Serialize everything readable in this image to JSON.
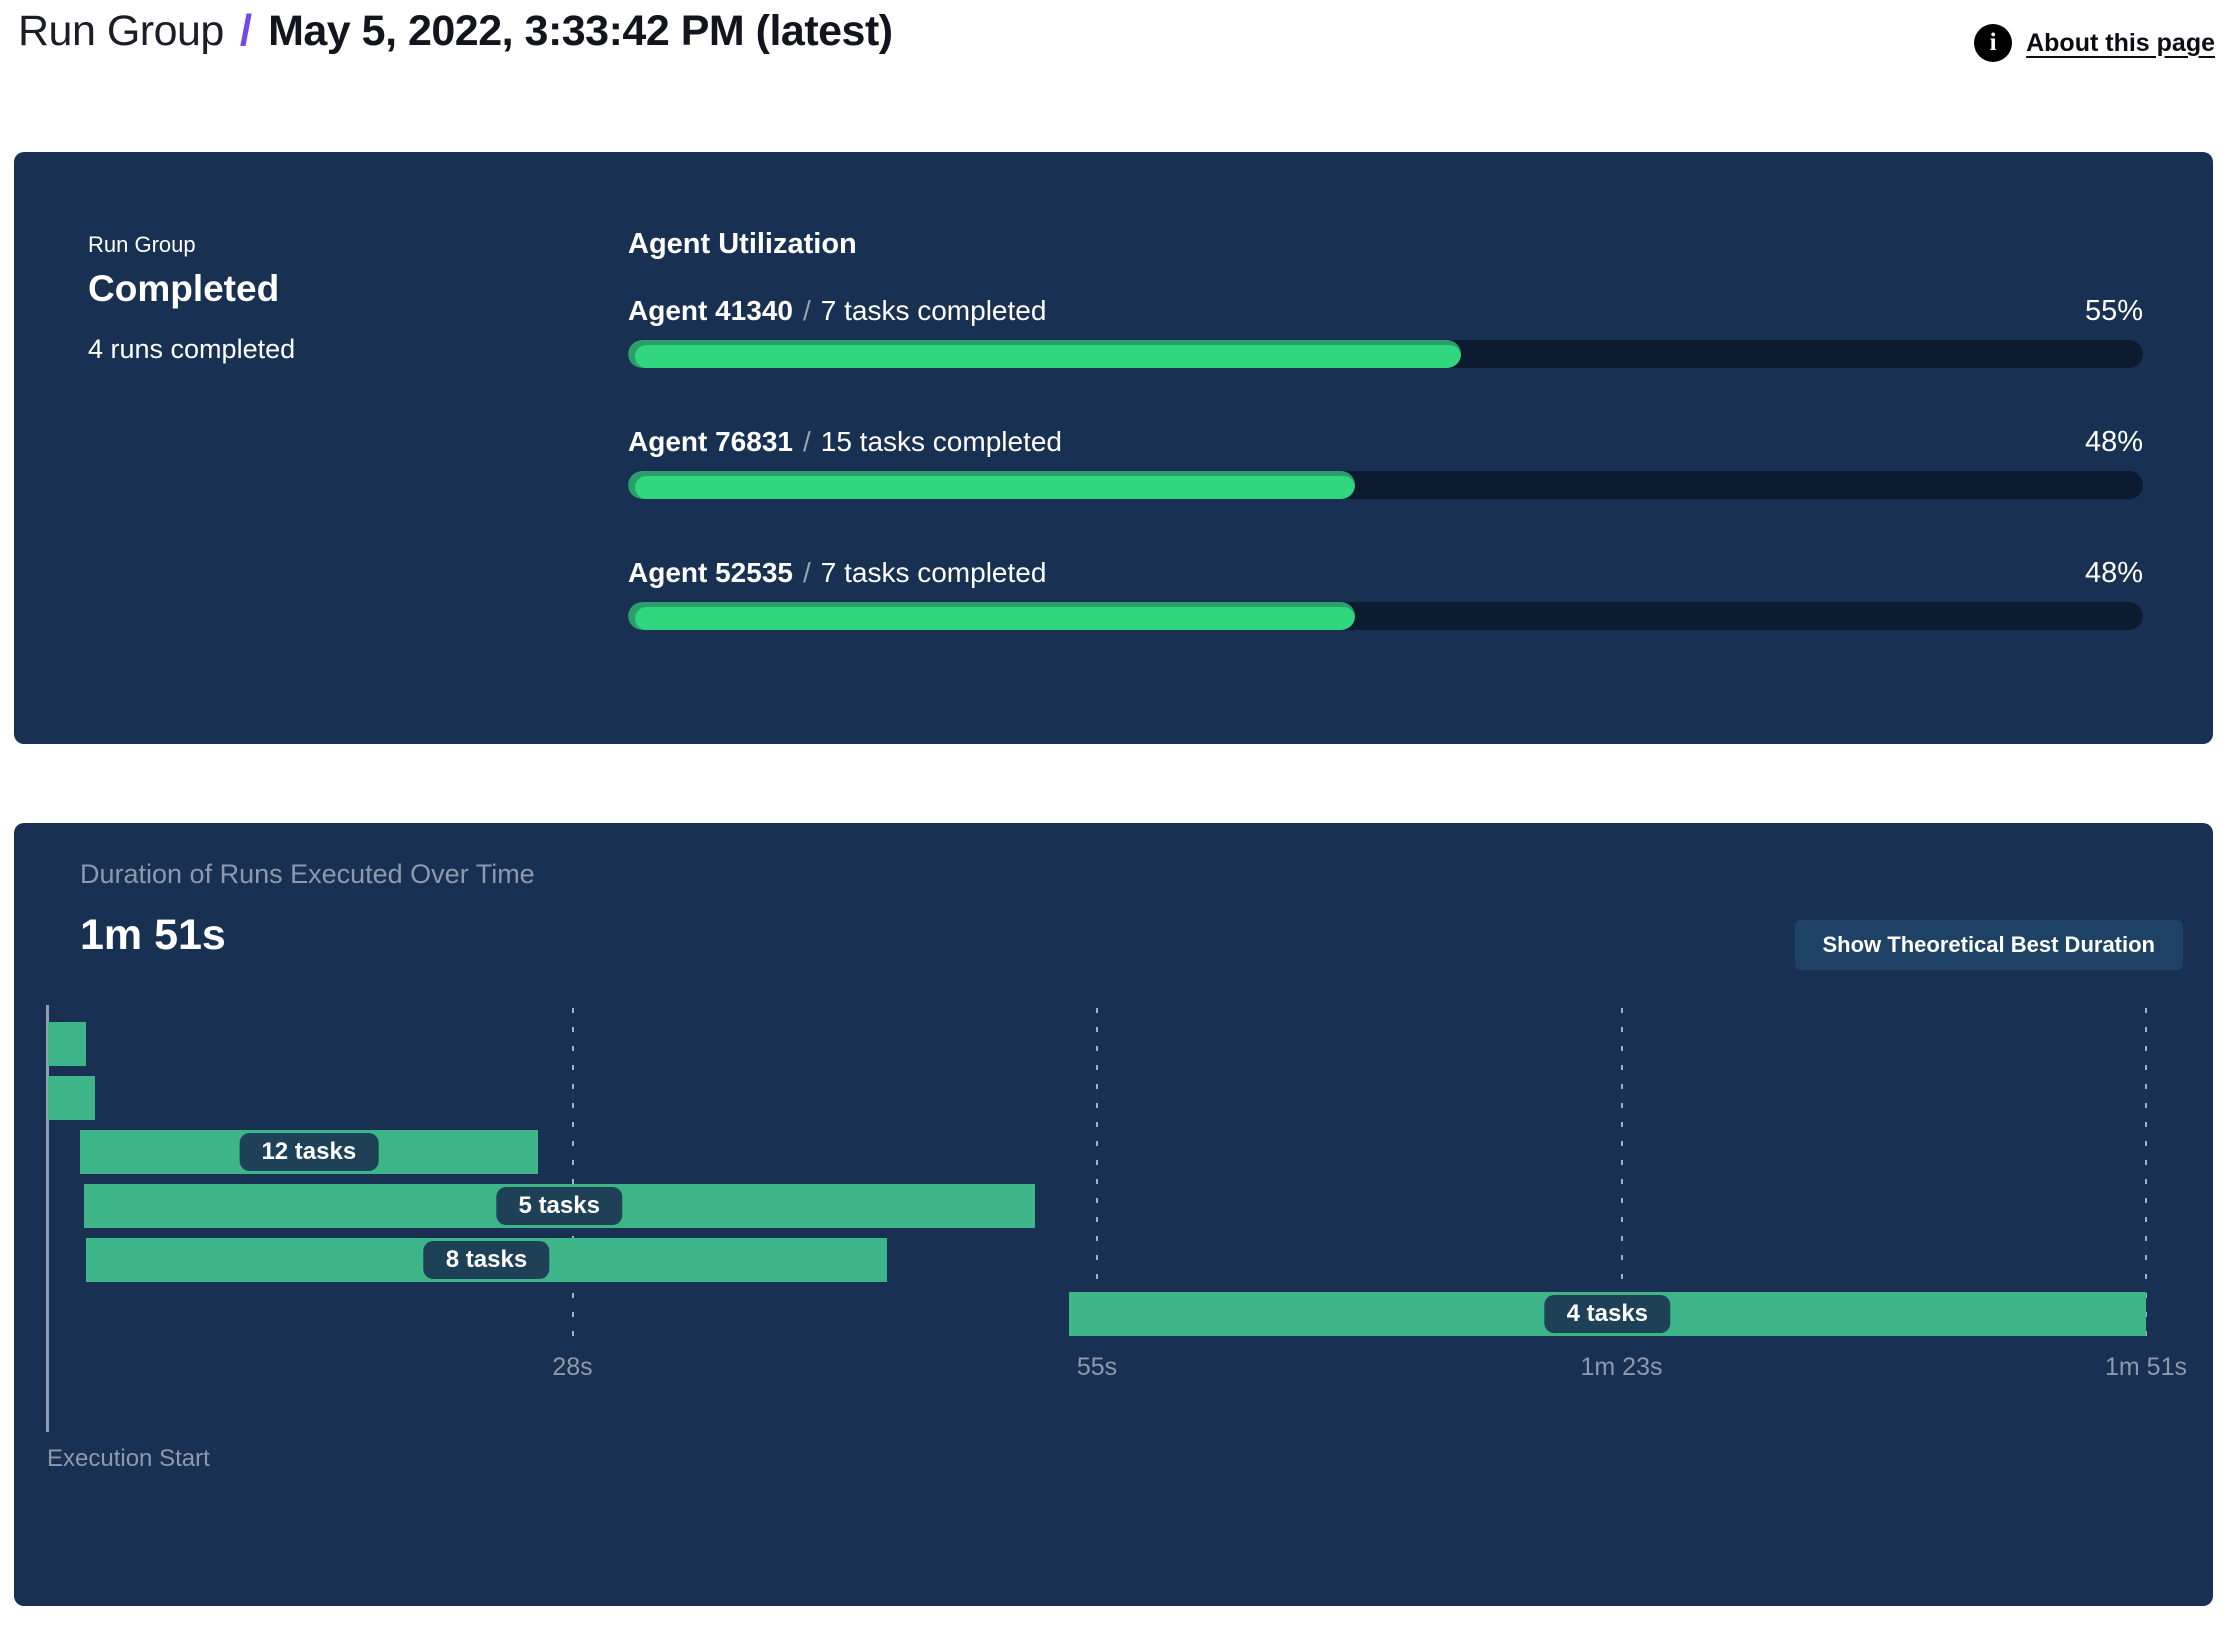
{
  "header": {
    "breadcrumb": "Run Group",
    "separator": "/",
    "current": "May 5, 2022, 3:33:42 PM (latest)",
    "about_label": "About this page",
    "info_icon_glyph": "i"
  },
  "summary": {
    "kicker": "Run Group",
    "status": "Completed",
    "detail": "4 runs completed"
  },
  "utilization": {
    "heading": "Agent Utilization",
    "separator": "/",
    "agents": [
      {
        "name": "Agent 41340",
        "detail": "7 tasks completed",
        "percent": 55,
        "percent_label": "55%"
      },
      {
        "name": "Agent 76831",
        "detail": "15 tasks completed",
        "percent": 48,
        "percent_label": "48%"
      },
      {
        "name": "Agent 52535",
        "detail": "7 tasks completed",
        "percent": 48,
        "percent_label": "48%"
      }
    ]
  },
  "duration_panel": {
    "title": "Duration of Runs Executed Over Time",
    "total_label": "1m 51s",
    "button_label": "Show Theoretical Best Duration",
    "axis_label": "Execution Start"
  },
  "colors": {
    "panel_bg": "#183051",
    "accent_purple": "#7448ec",
    "progress_fill": "#30d77f",
    "progress_fill_rim": "#2b9e6c",
    "progress_track": "#0d1b30",
    "gantt_bar": "#3eb489",
    "pill_bg": "#1e4158",
    "button_bg": "#1e4266",
    "muted_text": "#8e99ab"
  },
  "chart_data": [
    {
      "type": "bar",
      "orientation": "horizontal",
      "title": "Agent Utilization",
      "categories": [
        "Agent 41340",
        "Agent 76831",
        "Agent 52535"
      ],
      "values": [
        55,
        48,
        48
      ],
      "unit": "%",
      "annotations": [
        "7 tasks completed",
        "15 tasks completed",
        "7 tasks completed"
      ],
      "xlim": [
        0,
        100
      ],
      "grid": false,
      "legend": "none"
    },
    {
      "type": "bar",
      "subtype": "gantt",
      "title": "Duration of Runs Executed Over Time",
      "summary_value": "1m 51s",
      "xlabel": "Execution Start",
      "xlim_seconds": [
        0,
        111
      ],
      "ticks": [
        {
          "label": "28s",
          "seconds": 27.75
        },
        {
          "label": "55s",
          "seconds": 55.5
        },
        {
          "label": "1m 23s",
          "seconds": 83.25
        },
        {
          "label": "1m 51s",
          "seconds": 111
        }
      ],
      "runs": [
        {
          "row": 0,
          "start_s": 0,
          "end_s": 2.0,
          "label": ""
        },
        {
          "row": 1,
          "start_s": 0,
          "end_s": 2.5,
          "label": ""
        },
        {
          "row": 2,
          "start_s": 1.7,
          "end_s": 25.9,
          "label": "12 tasks"
        },
        {
          "row": 3,
          "start_s": 1.9,
          "end_s": 52.2,
          "label": "5 tasks"
        },
        {
          "row": 4,
          "start_s": 2.0,
          "end_s": 44.4,
          "label": "8 tasks"
        },
        {
          "row": 5,
          "start_s": 54.0,
          "end_s": 111,
          "label": "4 tasks"
        }
      ],
      "grid": "dashed-vertical",
      "legend": "none"
    }
  ]
}
